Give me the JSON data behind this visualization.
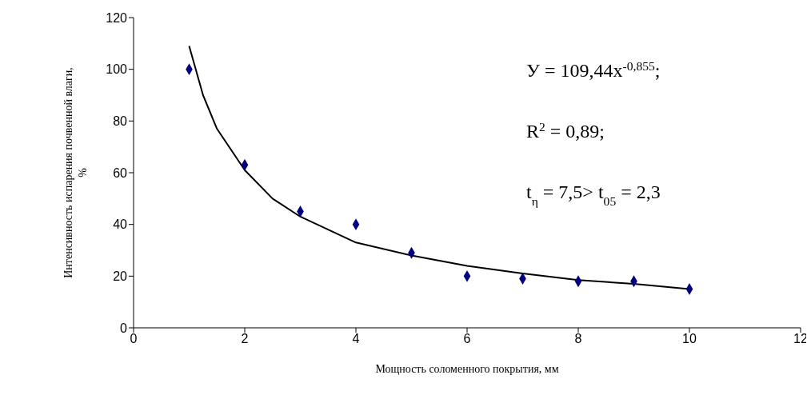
{
  "chart_data": {
    "type": "scatter",
    "xlabel": "Мощность соломенного покрытия, мм",
    "ylabel": "Интенсивность испарения почвенной влаги, %",
    "series": [
      {
        "color": "#000080",
        "marker": "diamond",
        "x": [
          1,
          2,
          3,
          4,
          5,
          6,
          7,
          8,
          9,
          10
        ],
        "values": [
          100,
          63,
          45,
          40,
          29,
          20,
          19,
          18,
          18,
          15
        ]
      },
      {
        "type": "line",
        "color": "#000000",
        "marker": "none",
        "x": [
          1,
          1.25,
          1.5,
          2,
          2.5,
          3,
          4,
          5,
          6,
          7,
          8,
          9,
          10
        ],
        "values": [
          109,
          90,
          77,
          61,
          50,
          43,
          33,
          28,
          24,
          21,
          18.5,
          17,
          15
        ]
      }
    ],
    "xlim": [
      0,
      12
    ],
    "xticks": [
      0,
      2,
      4,
      6,
      8,
      10,
      12
    ],
    "ylim": [
      0,
      120
    ],
    "yticks": [
      0,
      20,
      40,
      60,
      80,
      100,
      120
    ],
    "grid": false,
    "annotations": [
      "У = 109,44x$^{-0,855}$;",
      "R$^{2}$ = 0,89;",
      "t$_{η}$ = 7,5> t$_{05}$ = 2,3"
    ]
  }
}
